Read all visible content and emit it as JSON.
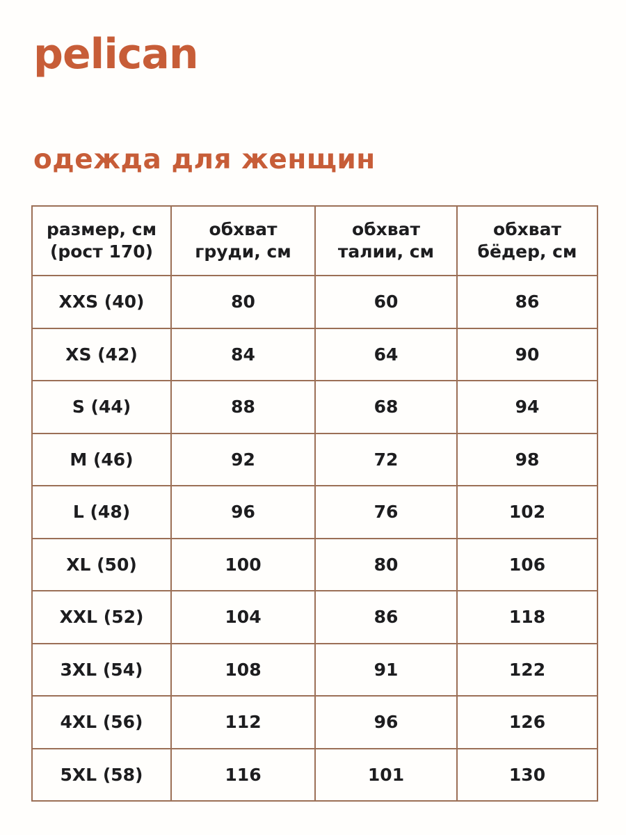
{
  "brand": {
    "logo_text": "pelican"
  },
  "heading": {
    "title": "одежда для женщин"
  },
  "colors": {
    "accent": "#c75d38",
    "table_border": "#9b6f56",
    "text": "#1d1d1f",
    "background": "#fffefc"
  },
  "table": {
    "columns": [
      {
        "line1": "размер, см",
        "line2": "(рост 170)"
      },
      {
        "line1": "обхват",
        "line2": "груди, см"
      },
      {
        "line1": "обхват",
        "line2": "талии, см"
      },
      {
        "line1": "обхват",
        "line2": "бёдер, см"
      }
    ],
    "rows": [
      {
        "size": "XXS (40)",
        "chest": "80",
        "waist": "60",
        "hips": "86"
      },
      {
        "size": "XS (42)",
        "chest": "84",
        "waist": "64",
        "hips": "90"
      },
      {
        "size": "S (44)",
        "chest": "88",
        "waist": "68",
        "hips": "94"
      },
      {
        "size": "M (46)",
        "chest": "92",
        "waist": "72",
        "hips": "98"
      },
      {
        "size": "L (48)",
        "chest": "96",
        "waist": "76",
        "hips": "102"
      },
      {
        "size": "XL (50)",
        "chest": "100",
        "waist": "80",
        "hips": "106"
      },
      {
        "size": "XXL (52)",
        "chest": "104",
        "waist": "86",
        "hips": "118"
      },
      {
        "size": "3XL (54)",
        "chest": "108",
        "waist": "91",
        "hips": "122"
      },
      {
        "size": "4XL (56)",
        "chest": "112",
        "waist": "96",
        "hips": "126"
      },
      {
        "size": "5XL (58)",
        "chest": "116",
        "waist": "101",
        "hips": "130"
      }
    ]
  }
}
